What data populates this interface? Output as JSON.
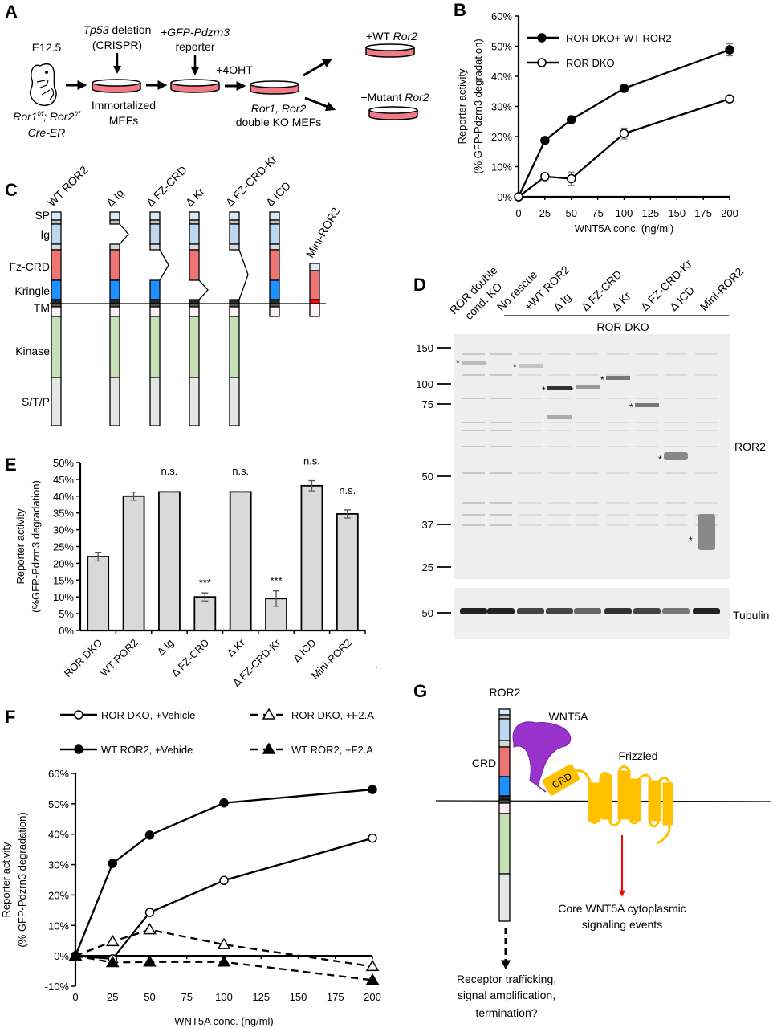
{
  "panels": {
    "A": {
      "label": "A",
      "stage": "E12.5",
      "genotype_1": "Ror1",
      "genotype_1_sup": "f/f",
      "genotype_sep": "; ",
      "genotype_2": "Ror2",
      "genotype_2_sup": "f/f",
      "genotype_3": "Cre-ER",
      "step1_gene": "Tp53",
      "step1_text": " deletion",
      "step1_method": "(CRISPR)",
      "step1_result_1": "Immortalized",
      "step1_result_2": "MEFs",
      "step2_text_1": "+GFP-Pdzrn3",
      "step2_text_2": "reporter",
      "step3_text": "+4OHT",
      "step3_result_1": "Ror1, Ror2",
      "step3_result_2": "double KO MEFs",
      "rescue_wt_prefix": "+WT ",
      "rescue_wt_gene": "Ror2",
      "rescue_mut_prefix": "+Mutant ",
      "rescue_mut_gene": "Ror2",
      "dish_color": "#f07a86"
    },
    "C": {
      "label": "C",
      "domains": [
        "SP",
        "Ig",
        "Fz-CRD",
        "Kringle",
        "TM",
        "Kinase",
        "S/T/P"
      ],
      "constructs": [
        "WT ROR2",
        "Δ Ig",
        "Δ FZ-CRD",
        "Δ Kr",
        "Δ FZ-CRD-Kr",
        "Δ ICD",
        "Mini-ROR2"
      ],
      "colors": {
        "SP": "#dbe9f6",
        "Ig": "#bdd7ee",
        "Fz-CRD": "#ef7474",
        "Kringle": "#1e90ff",
        "TM": "#404040",
        "juxta": "#fdf0f2",
        "Kinase": "#c5e0b4",
        "S/T/P": "#e6e6e6",
        "mini_TM": "#ff0000"
      }
    },
    "D": {
      "label": "D",
      "lanes": [
        "ROR double cond. KO",
        "No rescue",
        "+WT ROR2",
        "Δ Ig",
        "Δ FZ-CRD",
        "Δ Kr",
        "Δ FZ-CRD-Kr",
        "Δ ICD",
        "Mini-ROR2"
      ],
      "lane_0_line1": "ROR double",
      "lane_0_line2": "cond. KO",
      "group_label": "ROR DKO",
      "markers_kda": [
        "150",
        "100",
        "75",
        "50",
        "37",
        "25"
      ],
      "tubulin_marker": "50",
      "blot_label": "ROR2",
      "loading_label": "Tubulin",
      "band_marker": "*"
    },
    "G": {
      "label": "G",
      "ror2_label": "ROR2",
      "crd_label": "CRD",
      "wnt_label": "WNT5A",
      "fz_label": "Frizzled",
      "fz_crd_label": "CRD",
      "core_text_1": "Core WNT5A cytoplasmic",
      "core_text_2": "signaling events",
      "ror_text_1": "Receptor trafficking,",
      "ror_text_2": "signal amplification,",
      "ror_text_3": "termination?",
      "colors": {
        "wnt5a": "#9933cc",
        "frizzled": "#ffc000",
        "arrow": "#ff0000"
      }
    }
  },
  "chart_data": [
    {
      "panel": "B",
      "type": "line",
      "xlabel": "WNT5A conc. (ng/ml)",
      "ylabel_1": "Reporter activity",
      "ylabel_2": "(% GFP-Pdzrn3 degradation)",
      "x_ticks": [
        "0",
        "25",
        "50",
        "75",
        "100",
        "125",
        "150",
        "175",
        "200"
      ],
      "y_ticks": [
        "0%",
        "10%",
        "20%",
        "30%",
        "40%",
        "50%",
        "60%"
      ],
      "xlim": [
        0,
        200
      ],
      "ylim": [
        0,
        60
      ],
      "grid": false,
      "legend_placement": "top-left",
      "x": [
        0,
        25,
        50,
        100,
        200
      ],
      "series": [
        {
          "name": "ROR DKO+ WT ROR2",
          "marker": "filled-circle",
          "values": [
            0,
            18.7,
            25.6,
            36,
            48.8
          ],
          "errors": [
            0,
            0.5,
            0.5,
            0.5,
            2
          ]
        },
        {
          "name": "ROR DKO",
          "marker": "open-circle",
          "values": [
            0,
            6.7,
            6.0,
            21,
            32.5
          ],
          "errors": [
            0,
            0.5,
            2.2,
            1.8,
            0.5
          ]
        }
      ]
    },
    {
      "panel": "E",
      "type": "bar",
      "ylabel_1": "Reporter activity",
      "ylabel_2": "(%GFP-Pdzrn3 degradation)",
      "categories": [
        "ROR DKO",
        "WT ROR2",
        "Δ Ig",
        "Δ FZ-CRD",
        "Δ Kr",
        "Δ FZ-CRD-Kr",
        "Δ ICD",
        "Mini-ROR2"
      ],
      "values": [
        22,
        40,
        41.3,
        10,
        41.3,
        9.5,
        43.1,
        34.7
      ],
      "errors": [
        1.3,
        1.2,
        0.3,
        1.2,
        0.3,
        2.3,
        1.5,
        1.2
      ],
      "annotations": [
        "",
        "",
        "n.s.",
        "***",
        "n.s.",
        "***",
        "n.s.",
        "n.s."
      ],
      "y_ticks": [
        "0%",
        "5%",
        "10%",
        "15%",
        "20%",
        "25%",
        "30%",
        "35%",
        "40%",
        "45%",
        "50%"
      ],
      "ylim": [
        0,
        50
      ],
      "bar_color": "#d9d9d9",
      "stray_mark": "."
    },
    {
      "panel": "F",
      "type": "line",
      "xlabel": "WNT5A conc. (ng/ml)",
      "ylabel_1": "Reporter activity",
      "ylabel_2": "(% GFP-Pdzrn3 degradation)",
      "x_ticks": [
        "0",
        "25",
        "50",
        "75",
        "100",
        "125",
        "150",
        "175",
        "200"
      ],
      "y_ticks": [
        "-10%",
        "0%",
        "10%",
        "20%",
        "30%",
        "40%",
        "50%",
        "60%"
      ],
      "xlim": [
        0,
        200
      ],
      "ylim": [
        -10,
        60
      ],
      "grid": false,
      "legend_placement": "top",
      "x": [
        0,
        25,
        50,
        100,
        200
      ],
      "series": [
        {
          "name": "ROR DKO, +Vehicle",
          "marker": "open-circle",
          "line": "solid",
          "values": [
            0,
            -1,
            14.3,
            24.8,
            38.7
          ]
        },
        {
          "name": "ROR DKO, +F2.A",
          "marker": "open-triangle",
          "line": "dashed",
          "values": [
            0,
            4.7,
            8.6,
            3.7,
            -3.5
          ]
        },
        {
          "name": "WT ROR2, +Vehide",
          "marker": "filled-circle",
          "line": "solid",
          "values": [
            0,
            30.4,
            39.7,
            50.3,
            54.7
          ]
        },
        {
          "name": "WT ROR2, +F2.A",
          "marker": "filled-triangle",
          "line": "dashed",
          "values": [
            0,
            -2.2,
            -2,
            -2,
            -8
          ]
        }
      ]
    }
  ],
  "panel_labels": {
    "B": "B",
    "E": "E",
    "F": "F"
  }
}
